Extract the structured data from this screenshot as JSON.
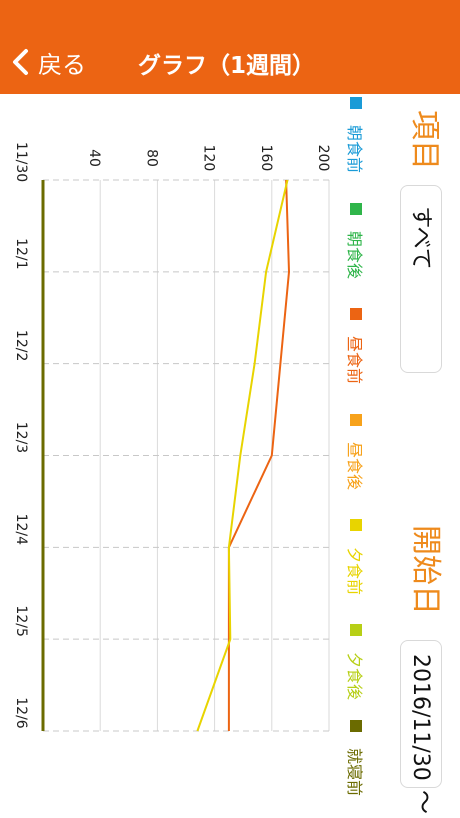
{
  "header": {
    "back_label": "戻る",
    "title": "グラフ（1週間）"
  },
  "form": {
    "item_heading": "項目",
    "item_value": "すべて",
    "start_heading": "開始日",
    "start_value": "2016/11/30",
    "tilde": "〜"
  },
  "legend": [
    {
      "label": "朝食前",
      "color": "#1a9bd7"
    },
    {
      "label": "朝食後",
      "color": "#2fb54a"
    },
    {
      "label": "昼食前",
      "color": "#ec6413"
    },
    {
      "label": "昼食後",
      "color": "#f7a21b"
    },
    {
      "label": "夕食前",
      "color": "#e8d400"
    },
    {
      "label": "夕食後",
      "color": "#b7cf16"
    },
    {
      "label": "就寝前",
      "color": "#6b6b00"
    }
  ],
  "chart_data": {
    "type": "line",
    "orientation": "rotated-90",
    "categories": [
      "11/30",
      "12/1",
      "12/2",
      "12/3",
      "12/4",
      "12/5",
      "12/6"
    ],
    "ylim": [
      0,
      200
    ],
    "yticks": [
      40,
      80,
      120,
      160,
      200
    ],
    "grid": true,
    "series": [
      {
        "name": "昼食前",
        "color": "#ec6413",
        "values": [
          170,
          172,
          null,
          160,
          130,
          130,
          130
        ]
      },
      {
        "name": "夕食前",
        "color": "#e8d400",
        "values": [
          171,
          156,
          148,
          138,
          130,
          131,
          108
        ]
      },
      {
        "name": "就寝前",
        "color": "#6b6b00",
        "values": [
          0,
          0,
          0,
          0,
          0,
          0,
          0
        ]
      }
    ]
  }
}
